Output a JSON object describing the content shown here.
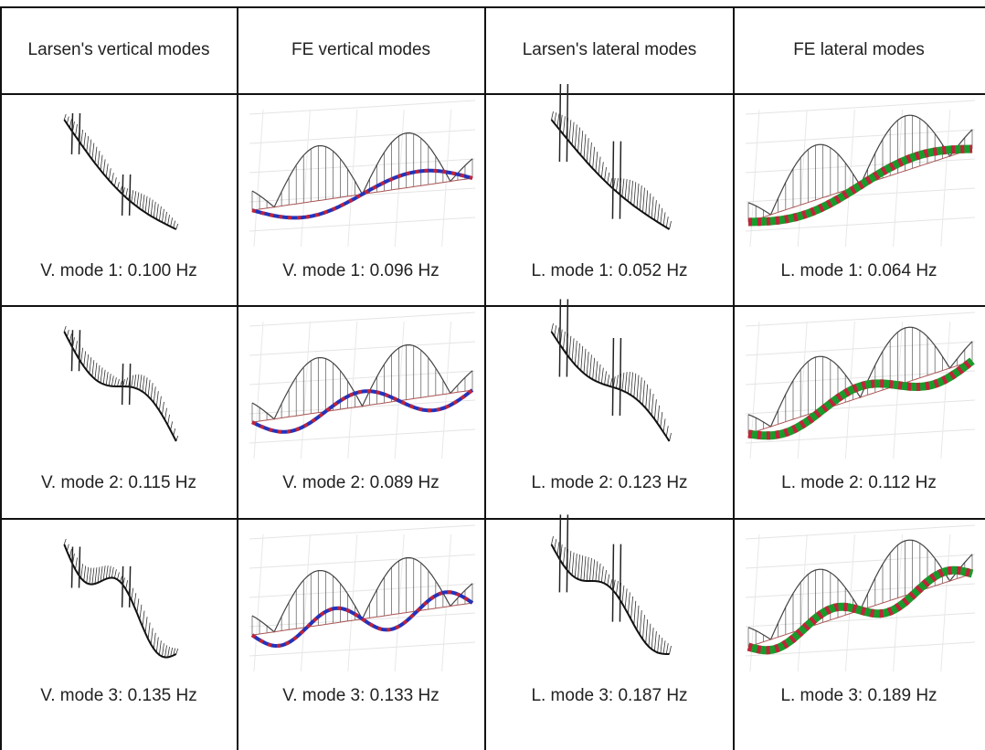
{
  "table": {
    "header": [
      "Larsen's vertical modes",
      "FE vertical modes",
      "Larsen's lateral modes",
      "FE lateral modes"
    ],
    "rows": [
      [
        "V. mode 1: 0.100 Hz",
        "V. mode 1: 0.096 Hz",
        "L. mode 1: 0.052 Hz",
        "L. mode 1: 0.064 Hz"
      ],
      [
        "V. mode 2: 0.115 Hz",
        "V. mode 2: 0.089 Hz",
        "L. mode 2: 0.123 Hz",
        "L. mode 2: 0.112 Hz"
      ],
      [
        "V. mode 3: 0.135 Hz",
        "V. mode 3: 0.133 Hz",
        "L. mode 3: 0.187 Hz",
        "L. mode 3: 0.189 Hz"
      ]
    ]
  }
}
